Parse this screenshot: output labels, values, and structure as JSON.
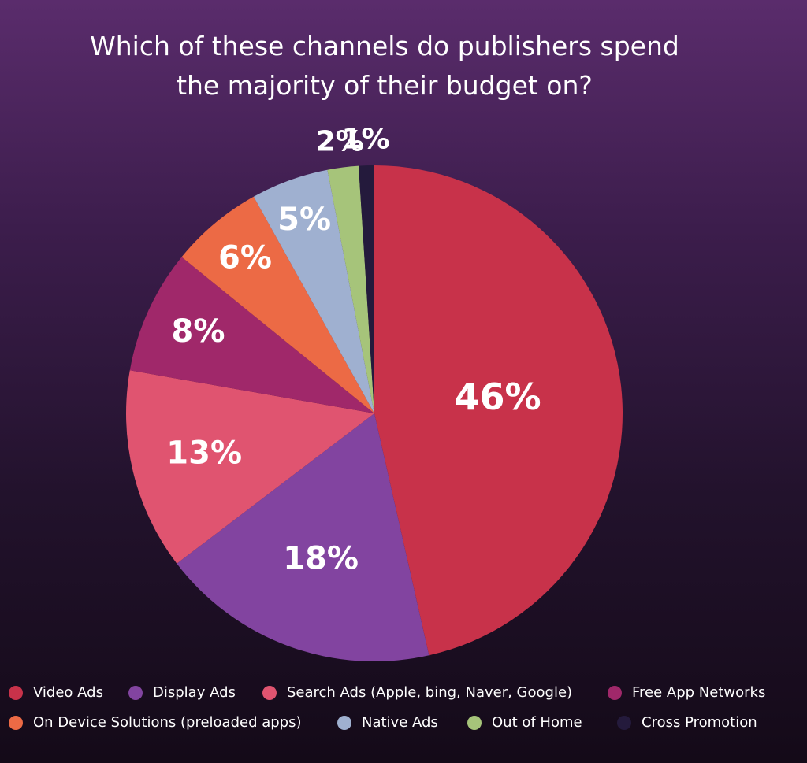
{
  "chart_data": {
    "type": "pie",
    "title": "Which of these channels do publishers spend the majority of their budget on?",
    "categories": [
      "Video Ads",
      "Display Ads",
      "Search Ads (Apple, bing, Naver, Google)",
      "Free App Networks",
      "On Device Solutions (preloaded apps)",
      "Native Ads",
      "Out of Home",
      "Cross Promotion"
    ],
    "values": [
      46,
      18,
      13,
      8,
      6,
      5,
      2,
      1
    ],
    "value_labels": [
      "46%",
      "18%",
      "13%",
      "8%",
      "6%",
      "5%",
      "2%",
      "1%"
    ],
    "colors": [
      "#c8324a",
      "#8244a0",
      "#e05470",
      "#a0286a",
      "#ec6a45",
      "#9fb0d0",
      "#a6c47a",
      "#241a3c"
    ],
    "legend": "bottom"
  }
}
